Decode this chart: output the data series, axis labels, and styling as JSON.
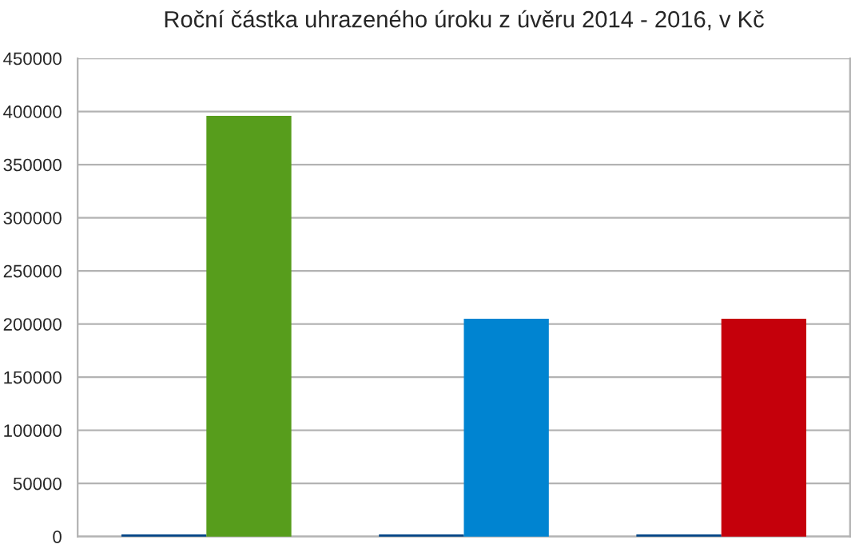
{
  "chart_data": {
    "type": "bar",
    "title": "Roční částka uhrazeného úroku z úvěru 2014 - 2016, v Kč",
    "categories": [
      null,
      null,
      null
    ],
    "series": [
      {
        "color": "#004586",
        "values": [
          2000,
          2000,
          2000
        ]
      },
      {
        "colors": [
          "#579d1c",
          "#0084d1",
          "#c5000b"
        ],
        "values": [
          396000,
          205000,
          205000
        ]
      }
    ],
    "ylim": [
      0,
      450000
    ],
    "yticks": [
      0,
      50000,
      100000,
      150000,
      200000,
      250000,
      300000,
      350000,
      400000,
      450000
    ],
    "grid": "y",
    "legend": false
  }
}
